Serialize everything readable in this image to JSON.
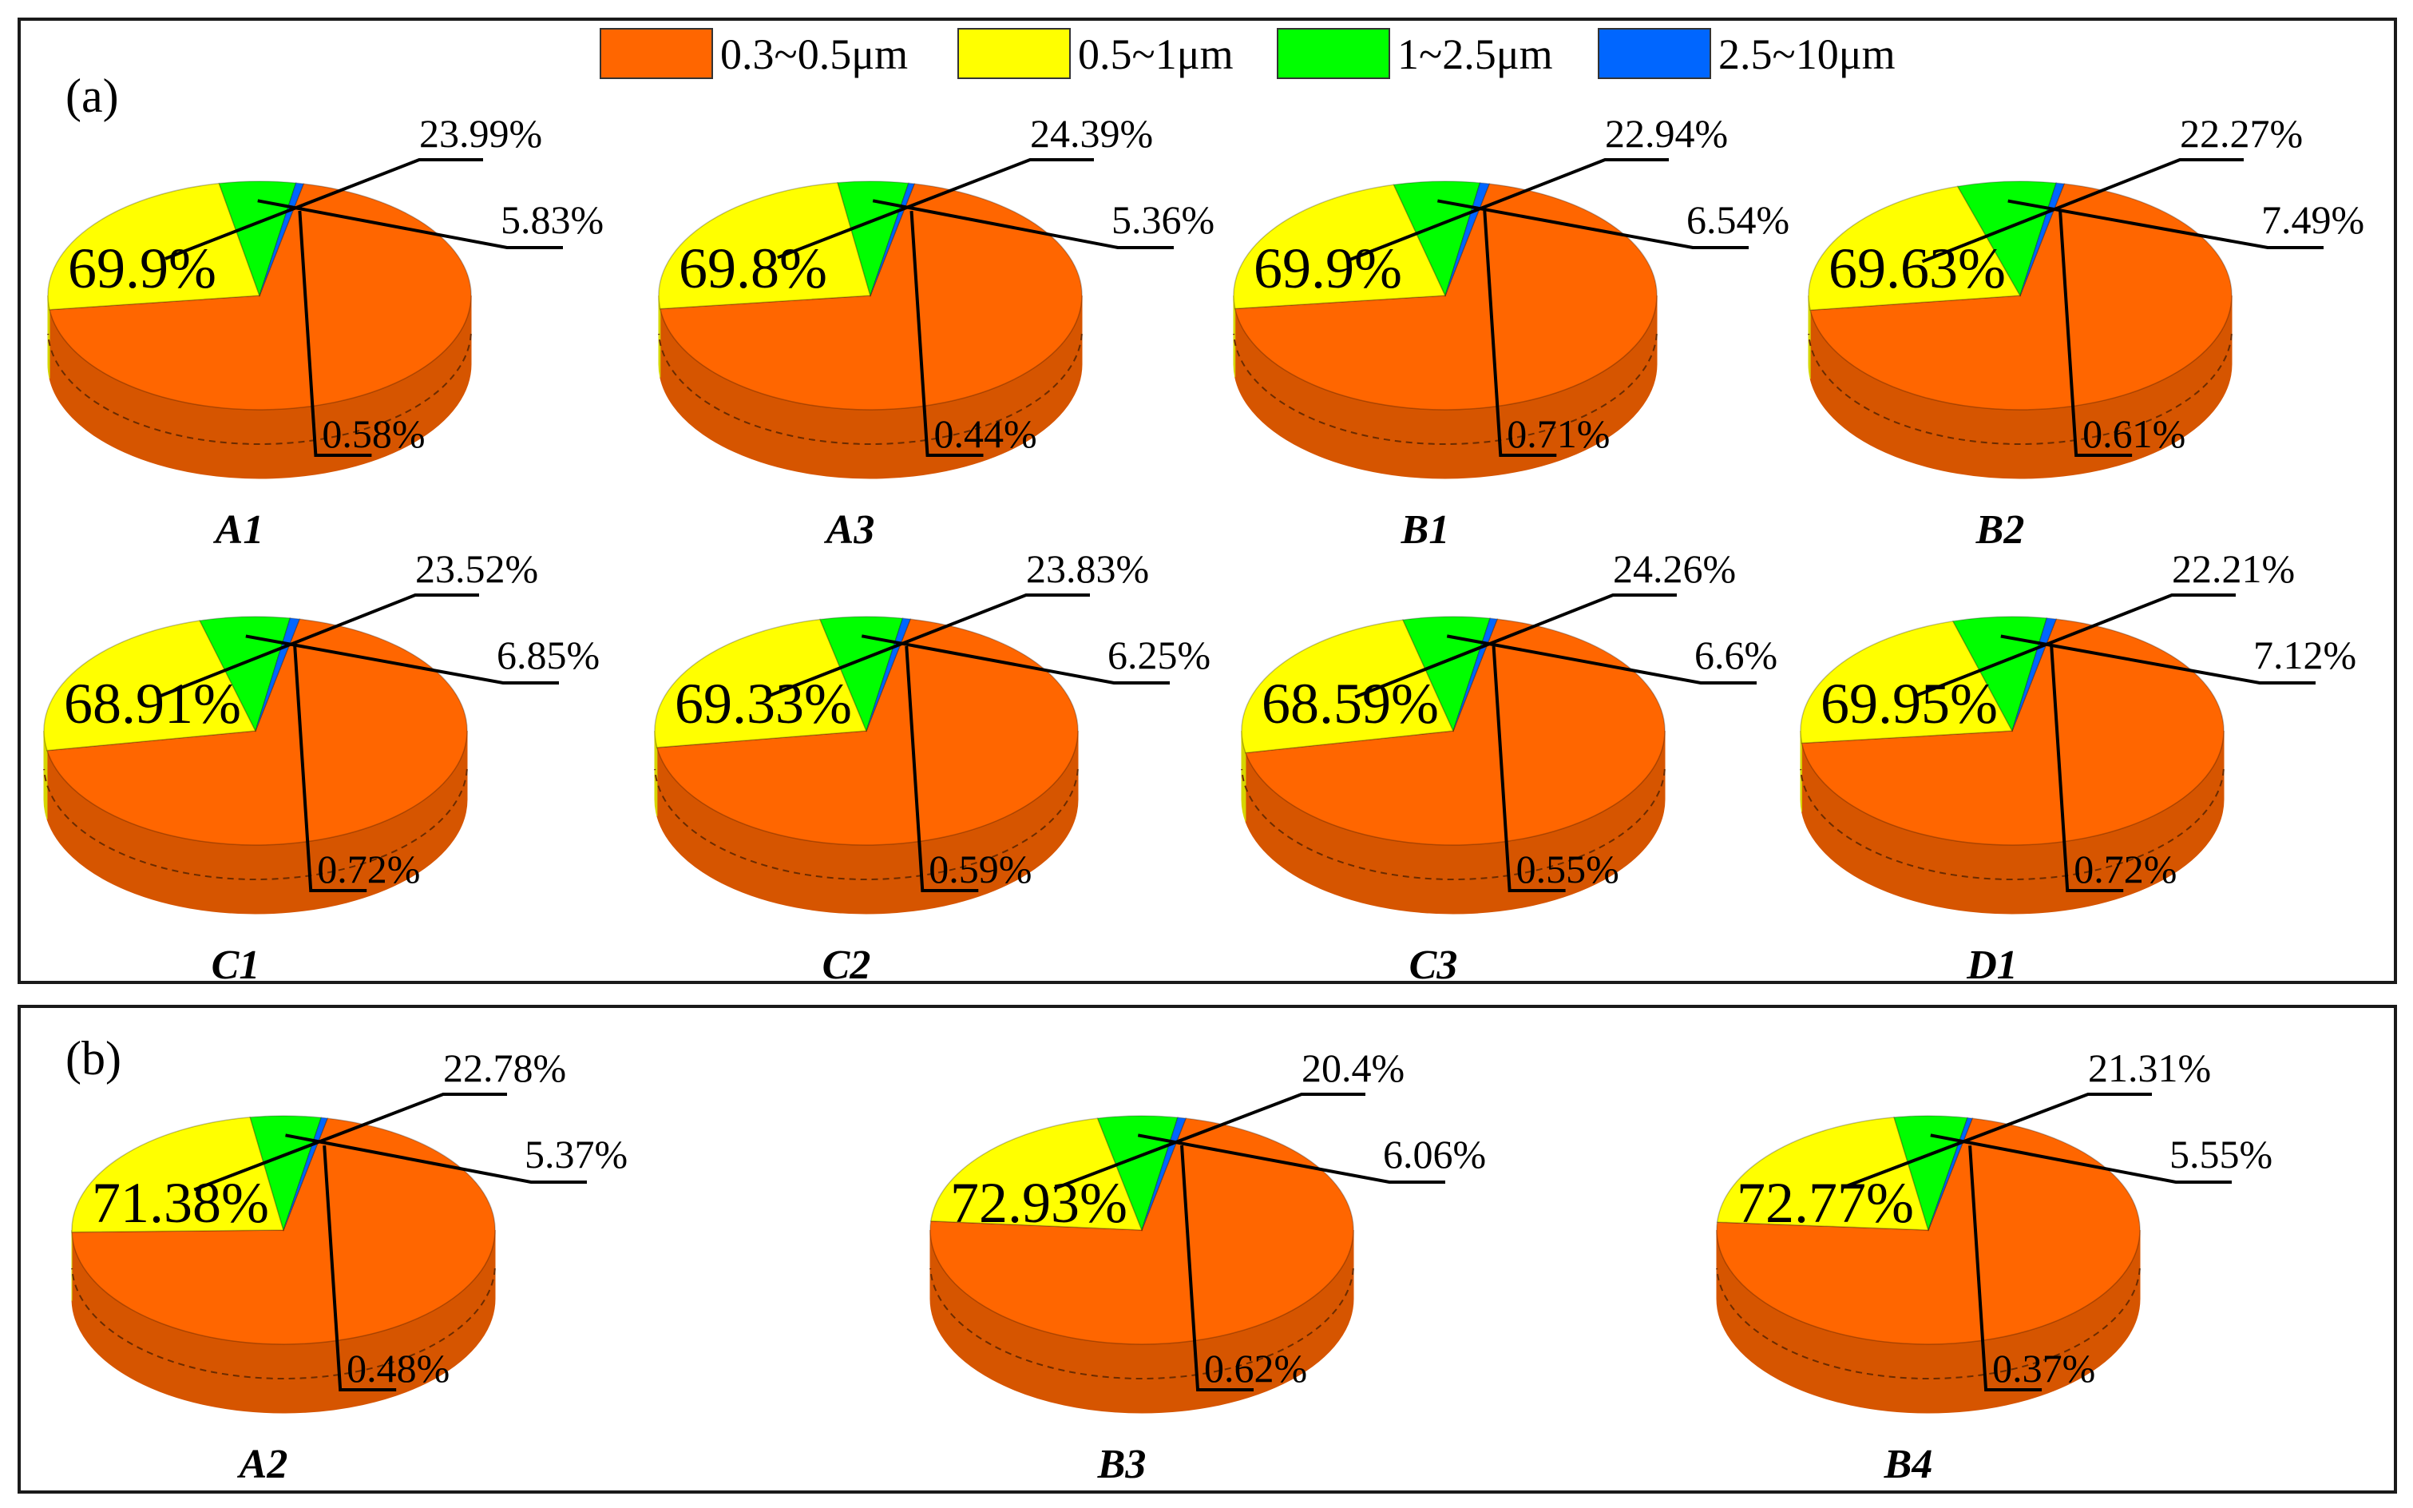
{
  "legend": [
    {
      "label": "0.3~0.5μm",
      "color": "#ff6600"
    },
    {
      "label": "0.5~1μm",
      "color": "#ffff00"
    },
    {
      "label": "1~2.5μm",
      "color": "#00ff00"
    },
    {
      "label": "2.5~10μm",
      "color": "#0066ff"
    }
  ],
  "panels": [
    {
      "label": "(a)"
    },
    {
      "label": "(b)"
    }
  ],
  "chart_data": [
    {
      "type": "pie",
      "title": "A1",
      "categories": [
        "0.3~0.5μm",
        "0.5~1μm",
        "1~2.5μm",
        "2.5~10μm"
      ],
      "values": [
        69.9,
        23.99,
        5.83,
        0.58
      ],
      "labels": [
        "69.9%",
        "23.99%",
        "5.83%",
        "0.58%"
      ]
    },
    {
      "type": "pie",
      "title": "A3",
      "categories": [
        "0.3~0.5μm",
        "0.5~1μm",
        "1~2.5μm",
        "2.5~10μm"
      ],
      "values": [
        69.8,
        24.39,
        5.36,
        0.44
      ],
      "labels": [
        "69.8%",
        "24.39%",
        "5.36%",
        "0.44%"
      ]
    },
    {
      "type": "pie",
      "title": "B1",
      "categories": [
        "0.3~0.5μm",
        "0.5~1μm",
        "1~2.5μm",
        "2.5~10μm"
      ],
      "values": [
        69.9,
        22.94,
        6.54,
        0.71
      ],
      "labels": [
        "69.9%",
        "22.94%",
        "6.54%",
        "0.71%"
      ]
    },
    {
      "type": "pie",
      "title": "B2",
      "categories": [
        "0.3~0.5μm",
        "0.5~1μm",
        "1~2.5μm",
        "2.5~10μm"
      ],
      "values": [
        69.63,
        22.27,
        7.49,
        0.61
      ],
      "labels": [
        "69.63%",
        "22.27%",
        "7.49%",
        "0.61%"
      ]
    },
    {
      "type": "pie",
      "title": "C1",
      "categories": [
        "0.3~0.5μm",
        "0.5~1μm",
        "1~2.5μm",
        "2.5~10μm"
      ],
      "values": [
        68.91,
        23.52,
        6.85,
        0.72
      ],
      "labels": [
        "68.91%",
        "23.52%",
        "6.85%",
        "0.72%"
      ]
    },
    {
      "type": "pie",
      "title": "C2",
      "categories": [
        "0.3~0.5μm",
        "0.5~1μm",
        "1~2.5μm",
        "2.5~10μm"
      ],
      "values": [
        69.33,
        23.83,
        6.25,
        0.59
      ],
      "labels": [
        "69.33%",
        "23.83%",
        "6.25%",
        "0.59%"
      ]
    },
    {
      "type": "pie",
      "title": "C3",
      "categories": [
        "0.3~0.5μm",
        "0.5~1μm",
        "1~2.5μm",
        "2.5~10μm"
      ],
      "values": [
        68.59,
        24.26,
        6.6,
        0.55
      ],
      "labels": [
        "68.59%",
        "24.26%",
        "6.6%",
        "0.55%"
      ]
    },
    {
      "type": "pie",
      "title": "D1",
      "categories": [
        "0.3~0.5μm",
        "0.5~1μm",
        "1~2.5μm",
        "2.5~10μm"
      ],
      "values": [
        69.95,
        22.21,
        7.12,
        0.72
      ],
      "labels": [
        "69.95%",
        "22.21%",
        "7.12%",
        "0.72%"
      ]
    },
    {
      "type": "pie",
      "title": "A2",
      "categories": [
        "0.3~0.5μm",
        "0.5~1μm",
        "1~2.5μm",
        "2.5~10μm"
      ],
      "values": [
        71.38,
        22.78,
        5.37,
        0.48
      ],
      "labels": [
        "71.38%",
        "22.78%",
        "5.37%",
        "0.48%"
      ]
    },
    {
      "type": "pie",
      "title": "B3",
      "categories": [
        "0.3~0.5μm",
        "0.5~1μm",
        "1~2.5μm",
        "2.5~10μm"
      ],
      "values": [
        72.93,
        20.4,
        6.06,
        0.62
      ],
      "labels": [
        "72.93%",
        "20.4%",
        "6.06%",
        "0.62%"
      ]
    },
    {
      "type": "pie",
      "title": "B4",
      "categories": [
        "0.3~0.5μm",
        "0.5~1μm",
        "1~2.5μm",
        "2.5~10μm"
      ],
      "values": [
        72.77,
        21.31,
        5.55,
        0.37
      ],
      "labels": [
        "72.77%",
        "21.31%",
        "5.55%",
        "0.37%"
      ]
    }
  ]
}
